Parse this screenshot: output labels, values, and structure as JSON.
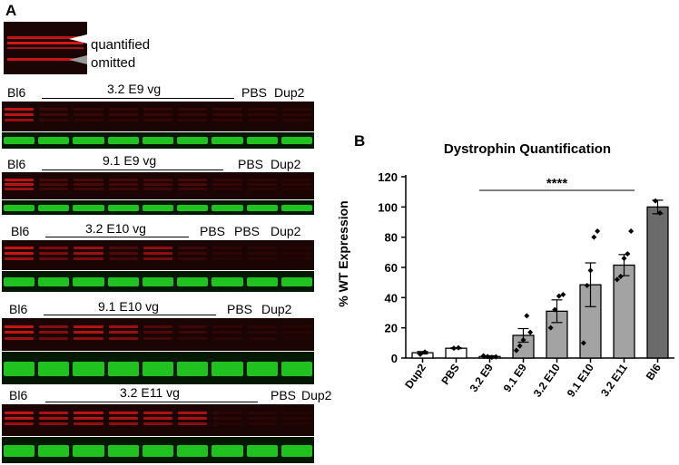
{
  "panel_a": {
    "label": "A",
    "legend": {
      "quantified": "quantified",
      "omitted": "omitted"
    },
    "blots": [
      {
        "bl6": "Bl6",
        "treatment": "3.2 E9 vg",
        "ctrl": [
          "PBS",
          "Dup2"
        ],
        "lanes": [
          0.9,
          0.18,
          0.16,
          0.16,
          0.17,
          0.15,
          0.16,
          0.12,
          0.1
        ]
      },
      {
        "bl6": "Bl6",
        "treatment": "9.1 E9 vg",
        "ctrl": [
          "PBS",
          "Dup2"
        ],
        "lanes": [
          0.9,
          0.25,
          0.28,
          0.24,
          0.26,
          0.25,
          0.14,
          0.12,
          0.1
        ]
      },
      {
        "bl6": "Bl6",
        "treatment": "3.2 E10 vg",
        "ctrl": [
          "PBS",
          "PBS",
          "Dup2"
        ],
        "lanes": [
          0.95,
          0.55,
          0.7,
          0.3,
          0.65,
          0.2,
          0.12,
          0.1,
          0.08
        ]
      },
      {
        "bl6": "Bl6",
        "treatment": "9.1 E10 vg",
        "ctrl": [
          "PBS",
          "Dup2"
        ],
        "lanes": [
          0.95,
          0.6,
          0.85,
          0.7,
          0.3,
          0.18,
          0.12,
          0.1,
          0.08
        ]
      },
      {
        "bl6": "Bl6",
        "treatment": "3.2 E11 vg",
        "ctrl": [
          "PBS",
          "Dup2"
        ],
        "lanes": [
          0.95,
          0.8,
          0.9,
          0.85,
          0.8,
          0.8,
          0.12,
          0.1,
          0.08
        ]
      }
    ]
  },
  "panel_b": {
    "label": "B"
  },
  "chart_data": {
    "type": "bar",
    "title": "Dystrophin Quantification",
    "ylabel": "% WT  Expression",
    "xlabel": "",
    "ylim": [
      0,
      120
    ],
    "yticks": [
      0,
      20,
      40,
      60,
      80,
      100,
      120
    ],
    "categories": [
      "Dup2",
      "PBS",
      "3.2 E9",
      "9.1 E9",
      "3.2 E10",
      "9.1 E10",
      "3.2 E11",
      "Bl6"
    ],
    "values": [
      3.5,
      6.5,
      1.0,
      15.0,
      31.0,
      48.5,
      61.5,
      100.0
    ],
    "sem": [
      0.8,
      0.3,
      0.5,
      4.5,
      7.5,
      14.5,
      7.0,
      4.5
    ],
    "points": [
      [
        2.5,
        4.0
      ],
      [
        6.5,
        6.8
      ],
      [
        1.5,
        1.0,
        0.5,
        0.8
      ],
      [
        5.0,
        8.0,
        12.0,
        28.0,
        17.0
      ],
      [
        20.0,
        32.0,
        41.0,
        42.0
      ],
      [
        10.0,
        48.0,
        58.0,
        80.0,
        84.0
      ],
      [
        52.0,
        54.0,
        66.0,
        69.0,
        84.0
      ],
      [
        104.0,
        96.0
      ]
    ],
    "bar_colors": [
      "#ffffff",
      "#ffffff",
      "#ffffff",
      "#a3a3a3",
      "#a3a3a3",
      "#a3a3a3",
      "#a3a3a3",
      "#6b6b6b"
    ],
    "significance": {
      "label": "****",
      "from": "3.2 E9",
      "to": "3.2 E11",
      "y": 111
    },
    "grid": false,
    "legend": "none"
  }
}
